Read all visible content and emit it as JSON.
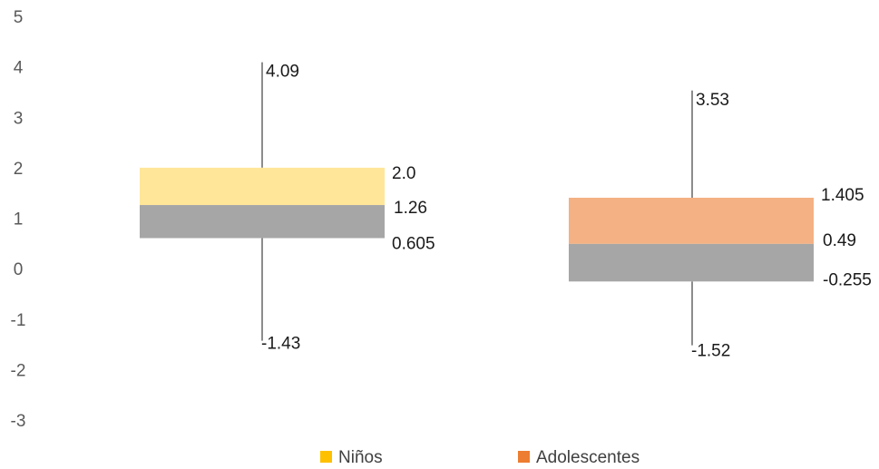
{
  "chart_data": {
    "type": "bar",
    "subtype": "box-plot",
    "title": "",
    "xlabel": "",
    "ylabel": "",
    "ylim": [
      -3,
      5
    ],
    "y_ticks": [
      "5",
      "4",
      "3",
      "2",
      "1",
      "0",
      "-1",
      "-2",
      "-3"
    ],
    "grid": false,
    "legend_position": "bottom",
    "colors": {
      "upper_box_gray": "#a6a6a6",
      "whisker": "#1a1a1a",
      "axis_text": "#595959"
    },
    "series": [
      {
        "name": "Niños",
        "color": "#ffc000",
        "upper_box_color": "#ffe699",
        "max": 4.09,
        "q3": 2.0,
        "median": 1.26,
        "q1": 0.605,
        "min": -1.43,
        "labels": {
          "max": "4.09",
          "q3": "2.0",
          "median": "1.26",
          "q1": "0.605",
          "min": "-1.43"
        }
      },
      {
        "name": "Adolescentes",
        "color": "#ed7d31",
        "upper_box_color": "#f4b183",
        "max": 3.53,
        "q3": 1.405,
        "median": 0.49,
        "q1": -0.255,
        "min": -1.52,
        "labels": {
          "max": "3.53",
          "q3": "1.405",
          "median": "0.49",
          "q1": "-0.255",
          "min": "-1.52"
        }
      }
    ]
  }
}
